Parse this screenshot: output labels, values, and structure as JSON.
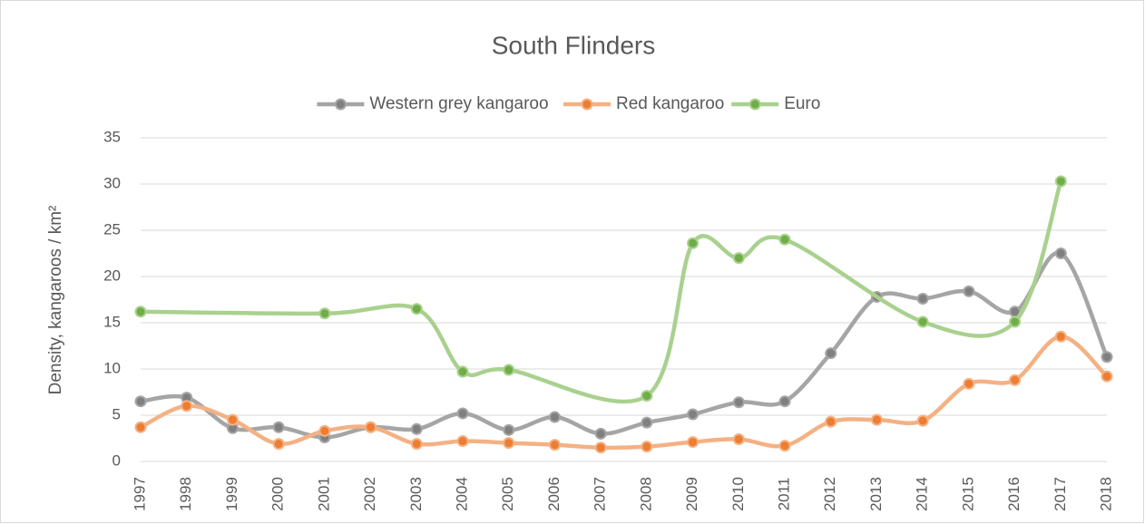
{
  "chart_data": {
    "type": "line",
    "title": "South Flinders",
    "y_label": "Density, kangaroos / km²",
    "categories": [
      1997,
      1998,
      1999,
      2000,
      2001,
      2002,
      2003,
      2004,
      2005,
      2006,
      2007,
      2008,
      2009,
      2010,
      2011,
      2012,
      2013,
      2014,
      2015,
      2016,
      2017,
      2018
    ],
    "series": [
      {
        "name": "Western grey kangaroo",
        "color": "#a5a5a5",
        "marker_color": "#808080",
        "values": [
          6.5,
          6.9,
          3.6,
          3.7,
          2.6,
          3.7,
          3.5,
          5.2,
          3.4,
          4.8,
          3.0,
          4.2,
          5.1,
          6.4,
          6.5,
          11.7,
          17.8,
          17.6,
          18.4,
          16.2,
          22.5,
          11.3
        ]
      },
      {
        "name": "Red kangaroo",
        "color": "#f4b183",
        "marker_color": "#ed7d31",
        "values": [
          3.7,
          6.0,
          4.5,
          1.9,
          3.3,
          3.7,
          1.9,
          2.2,
          2.0,
          1.8,
          1.5,
          1.6,
          2.1,
          2.4,
          1.7,
          4.3,
          4.5,
          4.4,
          8.4,
          8.8,
          13.5,
          9.2
        ]
      },
      {
        "name": "Euro",
        "color": "#a9d18e",
        "marker_color": "#70ad47",
        "values": [
          16.2,
          null,
          null,
          null,
          16.0,
          null,
          16.5,
          9.7,
          9.9,
          null,
          null,
          7.1,
          23.6,
          22.0,
          24.0,
          null,
          null,
          15.1,
          null,
          15.1,
          30.3,
          null
        ]
      }
    ],
    "connect_gaps": true,
    "smooth": true,
    "ylim": [
      0,
      35
    ],
    "yticks": [
      0,
      5,
      10,
      15,
      20,
      25,
      30,
      35
    ],
    "grid": true,
    "legend": "top"
  }
}
